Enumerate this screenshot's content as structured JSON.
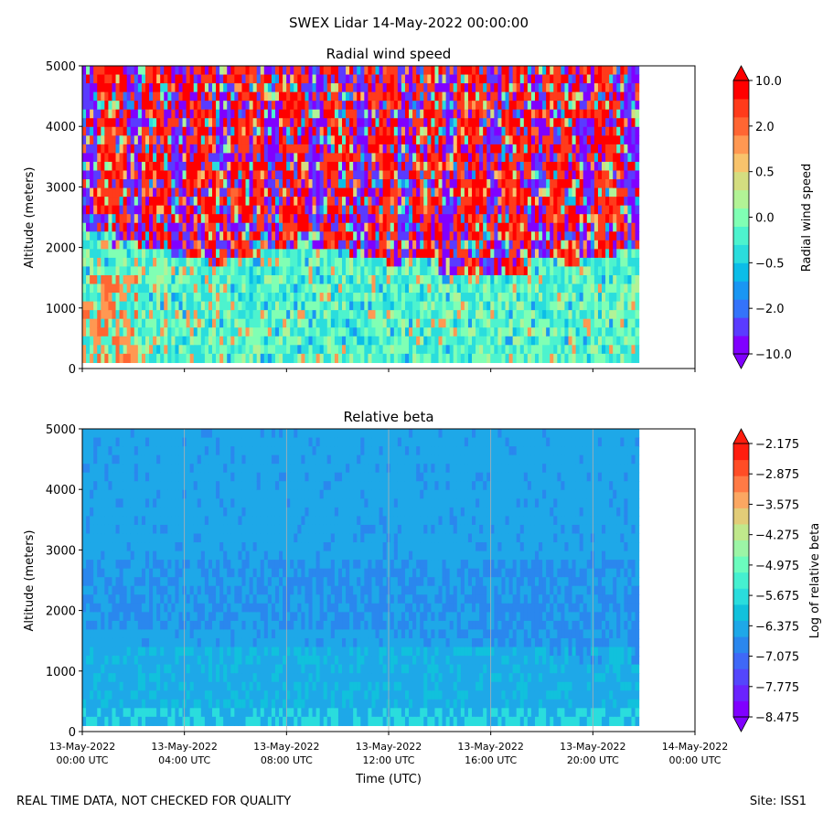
{
  "figure": {
    "suptitle": "SWEX Lidar 14-May-2022 00:00:00",
    "footer_left": "REAL TIME DATA, NOT CHECKED FOR QUALITY",
    "footer_right": "Site: ISS1"
  },
  "chart_data": [
    {
      "type": "heatmap",
      "title": "Radial wind speed",
      "xlabel": "",
      "ylabel": "Altitude (meters)",
      "x_range_hours": [
        0,
        24
      ],
      "data_extent_hours": [
        0,
        21.8
      ],
      "ylim": [
        0,
        5000
      ],
      "altitude_range_data": [
        100,
        5000
      ],
      "yticks": [
        0,
        1000,
        2000,
        3000,
        4000,
        5000
      ],
      "xticks_hours": [
        0,
        4,
        8,
        12,
        16,
        20,
        24
      ],
      "show_xtick_labels": false,
      "colorbar": {
        "label": "Radial wind speed",
        "tick_labels": [
          "10.0",
          "2.0",
          "0.5",
          "0.0",
          "−0.5",
          "−2.0",
          "−10.0"
        ],
        "extend": "both"
      },
      "description_levels": {
        "lower_layer_top_m": 1900,
        "lower_layer_value": "near 0 (greens, cyan, some orange)",
        "upper_layer_value": "noisy ±10 (red / purple streaks)"
      }
    },
    {
      "type": "heatmap",
      "title": "Relative beta",
      "xlabel": "Time (UTC)",
      "ylabel": "Altitude (meters)",
      "x_range_hours": [
        0,
        24
      ],
      "data_extent_hours": [
        0,
        21.8
      ],
      "ylim": [
        0,
        5000
      ],
      "yticks": [
        0,
        1000,
        2000,
        3000,
        4000,
        5000
      ],
      "xticks_hours": [
        0,
        4,
        8,
        12,
        16,
        20,
        24
      ],
      "xtick_labels": [
        [
          "13-May-2022",
          "00:00 UTC"
        ],
        [
          "13-May-2022",
          "04:00 UTC"
        ],
        [
          "13-May-2022",
          "08:00 UTC"
        ],
        [
          "13-May-2022",
          "12:00 UTC"
        ],
        [
          "13-May-2022",
          "16:00 UTC"
        ],
        [
          "13-May-2022",
          "20:00 UTC"
        ],
        [
          "14-May-2022",
          "00:00 UTC"
        ]
      ],
      "grid_vertical": true,
      "colorbar": {
        "label": "Log of relative beta",
        "tick_labels": [
          "−2.175",
          "−2.875",
          "−3.575",
          "−4.275",
          "−4.975",
          "−5.675",
          "−6.375",
          "−7.075",
          "−7.775",
          "−8.475"
        ],
        "extend": "both"
      },
      "description_levels": {
        "background": -7.1,
        "aerosol_layer": -7.6,
        "near_surface": -6.8
      }
    }
  ],
  "colors": {
    "wind_bands": [
      "#8000ff",
      "#5a3bff",
      "#3473fa",
      "#1996f3",
      "#0bbde8",
      "#2adddd",
      "#4df3ce",
      "#80ffb4",
      "#b2f396",
      "#d4dd80",
      "#f8c36c",
      "#ff9852",
      "#ff6633",
      "#ff3b1b",
      "#ff0000"
    ],
    "beta_bands": [
      "#8000ff",
      "#6a23fe",
      "#5446fc",
      "#3f68f7",
      "#2a87ee",
      "#1ea8e8",
      "#11c1dc",
      "#2adddd",
      "#45f0d0",
      "#6bfcbe",
      "#9cf5a6",
      "#c0e88c",
      "#e2cc78",
      "#fba762",
      "#ff7a45",
      "#ff4d26",
      "#ff1d0f"
    ],
    "background": "#ffffff"
  }
}
